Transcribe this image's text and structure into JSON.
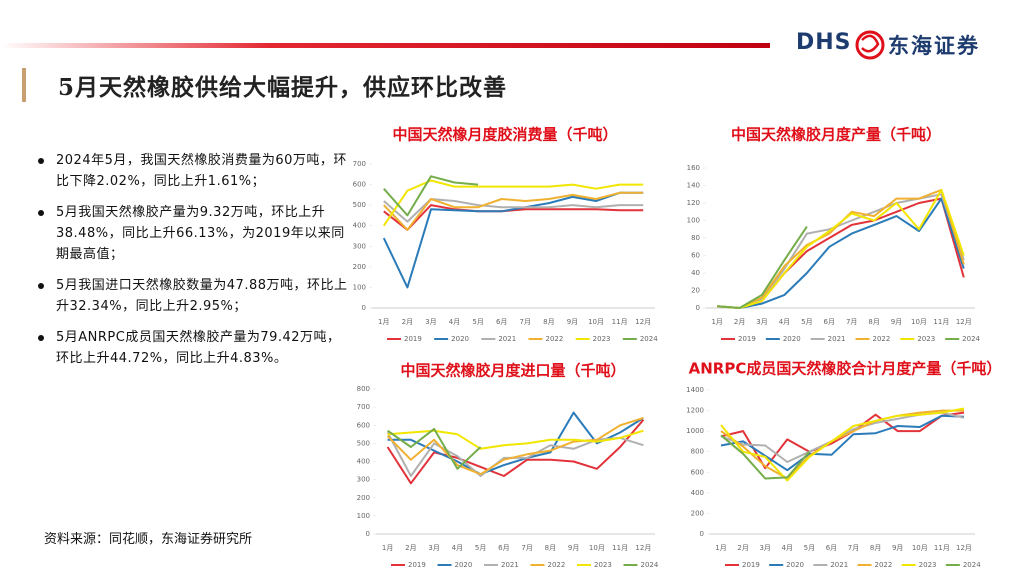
{
  "header": {
    "title": "5月天然橡胶供给大幅提升，供应环比改善",
    "logo_en": "DHS",
    "logo_cn": "东海证券"
  },
  "bullets": [
    "2024年5月，我国天然橡胶消费量为60万吨，环比下降2.02%，同比上升1.61%；",
    "5月我国天然橡胶产量为9.32万吨，环比上升38.48%，同比上升66.13%，为2019年以来同期最高值；",
    "5月我国进口天然橡胶数量为47.88万吨，环比上升32.34%，同比上升2.95%；",
    "5月ANRPC成员国天然橡胶产量为79.42万吨，环比上升44.72%，同比上升4.83%。"
  ],
  "source": "资料来源：同花顺，东海证券研究所",
  "chart_data": [
    {
      "type": "line",
      "title": "中国天然橡月度胶消费量（千吨）",
      "categories": [
        "1月",
        "2月",
        "3月",
        "4月",
        "5月",
        "6月",
        "7月",
        "8月",
        "9月",
        "10月",
        "11月",
        "12月"
      ],
      "ylim": [
        0,
        700
      ],
      "yticks": [
        0,
        100,
        200,
        300,
        400,
        500,
        600,
        700
      ],
      "series": [
        {
          "name": "2019",
          "color": "#e2323a",
          "values": [
            470,
            380,
            500,
            480,
            470,
            470,
            480,
            480,
            480,
            480,
            475,
            475
          ]
        },
        {
          "name": "2020",
          "color": "#2b7bb9",
          "values": [
            340,
            100,
            480,
            475,
            470,
            470,
            490,
            510,
            540,
            520,
            560,
            560
          ]
        },
        {
          "name": "2021",
          "color": "#b0b0b0",
          "values": [
            520,
            420,
            530,
            520,
            500,
            490,
            490,
            490,
            500,
            490,
            500,
            500
          ]
        },
        {
          "name": "2022",
          "color": "#f0b030",
          "values": [
            500,
            380,
            530,
            490,
            490,
            530,
            520,
            530,
            550,
            530,
            560,
            560
          ]
        },
        {
          "name": "2023",
          "color": "#f2e600",
          "values": [
            400,
            570,
            620,
            590,
            590,
            590,
            590,
            590,
            600,
            580,
            600,
            600
          ]
        },
        {
          "name": "2024",
          "color": "#74ad4a",
          "values": [
            580,
            450,
            640,
            610,
            600,
            null,
            null,
            null,
            null,
            null,
            null,
            null
          ]
        }
      ]
    },
    {
      "type": "line",
      "title": "中国天然橡胶月度产量（千吨）",
      "categories": [
        "1月",
        "2月",
        "3月",
        "4月",
        "5月",
        "6月",
        "7月",
        "8月",
        "9月",
        "10月",
        "11月",
        "12月"
      ],
      "ylim": [
        0,
        160
      ],
      "yticks": [
        0,
        20,
        40,
        60,
        80,
        100,
        120,
        140,
        160
      ],
      "series": [
        {
          "name": "2019",
          "color": "#e2323a",
          "values": [
            2,
            0,
            8,
            40,
            65,
            80,
            95,
            100,
            110,
            120,
            125,
            35
          ]
        },
        {
          "name": "2020",
          "color": "#2b7bb9",
          "values": [
            2,
            0,
            5,
            15,
            40,
            70,
            85,
            95,
            105,
            88,
            125,
            45
          ]
        },
        {
          "name": "2021",
          "color": "#b0b0b0",
          "values": [
            2,
            0,
            10,
            45,
            85,
            90,
            100,
            110,
            120,
            125,
            130,
            55
          ]
        },
        {
          "name": "2022",
          "color": "#f0b030",
          "values": [
            2,
            0,
            12,
            48,
            72,
            85,
            110,
            105,
            125,
            125,
            135,
            50
          ]
        },
        {
          "name": "2023",
          "color": "#f2e600",
          "values": [
            2,
            0,
            8,
            40,
            70,
            88,
            108,
            100,
            120,
            90,
            135,
            60
          ]
        },
        {
          "name": "2024",
          "color": "#74ad4a",
          "values": [
            2,
            0,
            15,
            55,
            93,
            null,
            null,
            null,
            null,
            null,
            null,
            null
          ]
        }
      ]
    },
    {
      "type": "line",
      "title": "中国天然橡胶月度进口量（千吨）",
      "categories": [
        "1月",
        "2月",
        "3月",
        "4月",
        "5月",
        "6月",
        "7月",
        "8月",
        "9月",
        "10月",
        "11月",
        "12月"
      ],
      "ylim": [
        0,
        800
      ],
      "yticks": [
        0,
        100,
        200,
        300,
        400,
        500,
        600,
        700,
        800
      ],
      "series": [
        {
          "name": "2019",
          "color": "#e2323a",
          "values": [
            480,
            280,
            450,
            420,
            370,
            320,
            410,
            410,
            400,
            360,
            480,
            630
          ]
        },
        {
          "name": "2020",
          "color": "#2b7bb9",
          "values": [
            520,
            520,
            460,
            400,
            330,
            380,
            420,
            450,
            670,
            500,
            560,
            640
          ]
        },
        {
          "name": "2021",
          "color": "#b0b0b0",
          "values": [
            560,
            320,
            500,
            430,
            320,
            420,
            420,
            490,
            470,
            520,
            530,
            490
          ]
        },
        {
          "name": "2022",
          "color": "#f0b030",
          "values": [
            540,
            410,
            520,
            380,
            330,
            410,
            440,
            460,
            510,
            520,
            600,
            640
          ]
        },
        {
          "name": "2023",
          "color": "#f2e600",
          "values": [
            550,
            560,
            570,
            550,
            470,
            490,
            500,
            520,
            520,
            510,
            530,
            570
          ]
        },
        {
          "name": "2024",
          "color": "#74ad4a",
          "values": [
            570,
            480,
            580,
            360,
            480,
            null,
            null,
            null,
            null,
            null,
            null,
            null
          ]
        }
      ]
    },
    {
      "type": "line",
      "title": "ANRPC成员国天然橡胶合计月度产量（千吨）",
      "categories": [
        "1月",
        "2月",
        "3月",
        "4月",
        "5月",
        "6月",
        "7月",
        "8月",
        "9月",
        "10月",
        "11月",
        "12月"
      ],
      "ylim": [
        0,
        1400
      ],
      "yticks": [
        0,
        200,
        400,
        600,
        800,
        1000,
        1200,
        1400
      ],
      "series": [
        {
          "name": "2019",
          "color": "#e2323a",
          "values": [
            950,
            1000,
            640,
            920,
            800,
            880,
            1000,
            1160,
            1000,
            1000,
            1150,
            1180
          ]
        },
        {
          "name": "2020",
          "color": "#2b7bb9",
          "values": [
            860,
            900,
            760,
            620,
            780,
            770,
            970,
            980,
            1050,
            1040,
            1150,
            1140
          ]
        },
        {
          "name": "2021",
          "color": "#b0b0b0",
          "values": [
            950,
            870,
            860,
            700,
            800,
            900,
            1020,
            1080,
            1120,
            1160,
            1180,
            1130
          ]
        },
        {
          "name": "2022",
          "color": "#f0b030",
          "values": [
            1000,
            850,
            660,
            540,
            760,
            900,
            1000,
            1100,
            1150,
            1180,
            1200,
            1200
          ]
        },
        {
          "name": "2023",
          "color": "#f2e600",
          "values": [
            1060,
            800,
            750,
            520,
            750,
            900,
            1050,
            1100,
            1150,
            1160,
            1180,
            1220
          ]
        },
        {
          "name": "2024",
          "color": "#74ad4a",
          "values": [
            960,
            780,
            540,
            550,
            800,
            null,
            null,
            null,
            null,
            null,
            null,
            null
          ]
        }
      ]
    }
  ]
}
